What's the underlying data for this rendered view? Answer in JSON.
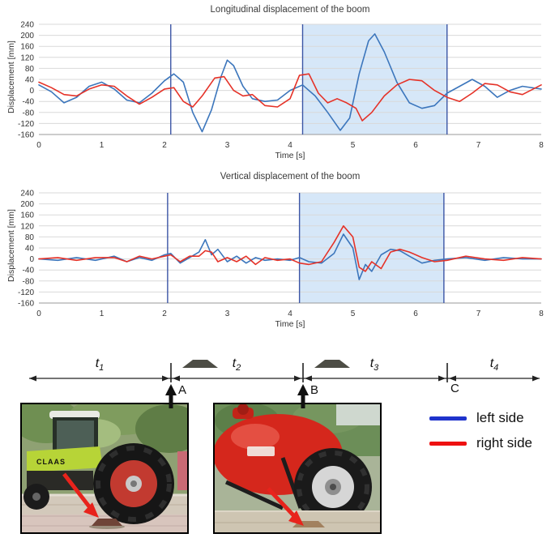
{
  "chart_data": [
    {
      "type": "line",
      "title": "Longitudinal displacement of the boom",
      "xlabel": "Time [s]",
      "ylabel": "Displacement [mm]",
      "xlim": [
        0,
        8
      ],
      "ylim": [
        -160,
        240
      ],
      "x_ticks": [
        0,
        1,
        2,
        3,
        4,
        5,
        6,
        7,
        8
      ],
      "y_ticks": [
        240,
        200,
        160,
        120,
        80,
        40,
        0,
        -40,
        -80,
        -120,
        -160
      ],
      "grid": "horizontal",
      "markers": [
        2.1,
        4.2,
        6.5
      ],
      "shade": [
        4.2,
        6.5
      ],
      "marker_color": "#3b55a5",
      "shade_color": "#d6e7f8",
      "series": [
        {
          "name": "left side",
          "color": "#3c76bc",
          "points": [
            [
              0,
              20
            ],
            [
              0.2,
              -5
            ],
            [
              0.4,
              -45
            ],
            [
              0.6,
              -25
            ],
            [
              0.8,
              15
            ],
            [
              1,
              30
            ],
            [
              1.2,
              5
            ],
            [
              1.4,
              -35
            ],
            [
              1.6,
              -45
            ],
            [
              1.8,
              -10
            ],
            [
              2,
              35
            ],
            [
              2.15,
              60
            ],
            [
              2.3,
              30
            ],
            [
              2.45,
              -80
            ],
            [
              2.6,
              -150
            ],
            [
              2.75,
              -70
            ],
            [
              2.9,
              50
            ],
            [
              3,
              110
            ],
            [
              3.1,
              90
            ],
            [
              3.25,
              15
            ],
            [
              3.4,
              -30
            ],
            [
              3.6,
              -40
            ],
            [
              3.8,
              -35
            ],
            [
              4,
              0
            ],
            [
              4.2,
              20
            ],
            [
              4.4,
              -20
            ],
            [
              4.6,
              -80
            ],
            [
              4.8,
              -145
            ],
            [
              4.95,
              -100
            ],
            [
              5.1,
              60
            ],
            [
              5.25,
              180
            ],
            [
              5.35,
              205
            ],
            [
              5.5,
              140
            ],
            [
              5.7,
              30
            ],
            [
              5.9,
              -45
            ],
            [
              6.1,
              -65
            ],
            [
              6.3,
              -55
            ],
            [
              6.5,
              -10
            ],
            [
              6.7,
              15
            ],
            [
              6.9,
              40
            ],
            [
              7.1,
              15
            ],
            [
              7.3,
              -25
            ],
            [
              7.5,
              0
            ],
            [
              7.7,
              15
            ],
            [
              8,
              5
            ]
          ]
        },
        {
          "name": "right side",
          "color": "#e53228",
          "points": [
            [
              0,
              30
            ],
            [
              0.2,
              10
            ],
            [
              0.4,
              -15
            ],
            [
              0.6,
              -20
            ],
            [
              0.8,
              5
            ],
            [
              1,
              20
            ],
            [
              1.2,
              15
            ],
            [
              1.4,
              -20
            ],
            [
              1.6,
              -50
            ],
            [
              1.8,
              -25
            ],
            [
              2,
              5
            ],
            [
              2.15,
              10
            ],
            [
              2.3,
              -40
            ],
            [
              2.45,
              -60
            ],
            [
              2.6,
              -20
            ],
            [
              2.8,
              45
            ],
            [
              2.95,
              50
            ],
            [
              3.1,
              0
            ],
            [
              3.25,
              -20
            ],
            [
              3.4,
              -15
            ],
            [
              3.6,
              -55
            ],
            [
              3.8,
              -60
            ],
            [
              4,
              -30
            ],
            [
              4.15,
              55
            ],
            [
              4.3,
              60
            ],
            [
              4.45,
              -10
            ],
            [
              4.6,
              -45
            ],
            [
              4.75,
              -30
            ],
            [
              4.9,
              -45
            ],
            [
              5.05,
              -65
            ],
            [
              5.15,
              -110
            ],
            [
              5.3,
              -80
            ],
            [
              5.5,
              -20
            ],
            [
              5.7,
              20
            ],
            [
              5.9,
              40
            ],
            [
              6.1,
              35
            ],
            [
              6.3,
              0
            ],
            [
              6.5,
              -25
            ],
            [
              6.7,
              -40
            ],
            [
              6.9,
              -10
            ],
            [
              7.1,
              25
            ],
            [
              7.3,
              20
            ],
            [
              7.5,
              -5
            ],
            [
              7.7,
              -15
            ],
            [
              8,
              20
            ]
          ]
        }
      ]
    },
    {
      "type": "line",
      "title": "Vertical displacement of the boom",
      "xlabel": "Time [s]",
      "ylabel": "Displacement [mm]",
      "xlim": [
        0,
        8
      ],
      "ylim": [
        -160,
        240
      ],
      "x_ticks": [
        0,
        1,
        2,
        3,
        4,
        5,
        6,
        7,
        8
      ],
      "y_ticks": [
        240,
        200,
        160,
        120,
        80,
        40,
        0,
        -40,
        -80,
        -120,
        -160
      ],
      "grid": "horizontal",
      "markers": [
        2.05,
        4.15,
        6.45
      ],
      "shade": [
        4.15,
        6.45
      ],
      "marker_color": "#3b55a5",
      "shade_color": "#d6e7f8",
      "series": [
        {
          "name": "left side",
          "color": "#3c76bc",
          "points": [
            [
              0,
              0
            ],
            [
              0.3,
              -5
            ],
            [
              0.6,
              5
            ],
            [
              0.9,
              -5
            ],
            [
              1.2,
              10
            ],
            [
              1.4,
              -10
            ],
            [
              1.6,
              5
            ],
            [
              1.8,
              -5
            ],
            [
              2,
              15
            ],
            [
              2.1,
              20
            ],
            [
              2.25,
              -15
            ],
            [
              2.4,
              5
            ],
            [
              2.55,
              25
            ],
            [
              2.65,
              70
            ],
            [
              2.75,
              15
            ],
            [
              2.85,
              35
            ],
            [
              3,
              -10
            ],
            [
              3.15,
              10
            ],
            [
              3.3,
              -15
            ],
            [
              3.45,
              5
            ],
            [
              3.6,
              -5
            ],
            [
              3.8,
              0
            ],
            [
              4,
              -5
            ],
            [
              4.15,
              5
            ],
            [
              4.3,
              -10
            ],
            [
              4.5,
              -15
            ],
            [
              4.7,
              20
            ],
            [
              4.85,
              90
            ],
            [
              5,
              40
            ],
            [
              5.1,
              -75
            ],
            [
              5.2,
              -20
            ],
            [
              5.3,
              -45
            ],
            [
              5.45,
              15
            ],
            [
              5.6,
              35
            ],
            [
              5.75,
              30
            ],
            [
              5.9,
              10
            ],
            [
              6.1,
              -15
            ],
            [
              6.3,
              -5
            ],
            [
              6.5,
              0
            ],
            [
              6.8,
              5
            ],
            [
              7.1,
              -5
            ],
            [
              7.4,
              5
            ],
            [
              7.7,
              0
            ],
            [
              8,
              0
            ]
          ]
        },
        {
          "name": "right side",
          "color": "#e53228",
          "points": [
            [
              0,
              0
            ],
            [
              0.3,
              5
            ],
            [
              0.6,
              -5
            ],
            [
              0.9,
              5
            ],
            [
              1.2,
              5
            ],
            [
              1.4,
              -10
            ],
            [
              1.6,
              10
            ],
            [
              1.8,
              0
            ],
            [
              2,
              10
            ],
            [
              2.1,
              15
            ],
            [
              2.25,
              -10
            ],
            [
              2.4,
              10
            ],
            [
              2.55,
              10
            ],
            [
              2.65,
              30
            ],
            [
              2.75,
              25
            ],
            [
              2.85,
              -10
            ],
            [
              3,
              5
            ],
            [
              3.15,
              -10
            ],
            [
              3.3,
              10
            ],
            [
              3.45,
              -20
            ],
            [
              3.6,
              5
            ],
            [
              3.8,
              -5
            ],
            [
              4,
              0
            ],
            [
              4.15,
              -15
            ],
            [
              4.3,
              -20
            ],
            [
              4.5,
              -10
            ],
            [
              4.7,
              60
            ],
            [
              4.85,
              120
            ],
            [
              5,
              80
            ],
            [
              5.1,
              -30
            ],
            [
              5.2,
              -45
            ],
            [
              5.3,
              -10
            ],
            [
              5.45,
              -35
            ],
            [
              5.6,
              25
            ],
            [
              5.75,
              35
            ],
            [
              5.9,
              25
            ],
            [
              6.1,
              5
            ],
            [
              6.3,
              -10
            ],
            [
              6.5,
              -5
            ],
            [
              6.8,
              10
            ],
            [
              7.1,
              0
            ],
            [
              7.4,
              -5
            ],
            [
              7.7,
              5
            ],
            [
              8,
              0
            ]
          ]
        }
      ]
    }
  ],
  "legend": {
    "items": [
      {
        "label": "left side",
        "color": "#1f33cc"
      },
      {
        "label": "right side",
        "color": "#ee1111"
      }
    ]
  },
  "timeline": {
    "t_labels": [
      {
        "base": "t",
        "sub": "1"
      },
      {
        "base": "t",
        "sub": "2"
      },
      {
        "base": "t",
        "sub": "3"
      },
      {
        "base": "t",
        "sub": "4"
      }
    ],
    "points": [
      {
        "label": "A"
      },
      {
        "label": "B"
      },
      {
        "label": "C"
      }
    ]
  },
  "photos": {
    "left": {
      "logo_text": "CLAAS"
    },
    "right": {}
  }
}
